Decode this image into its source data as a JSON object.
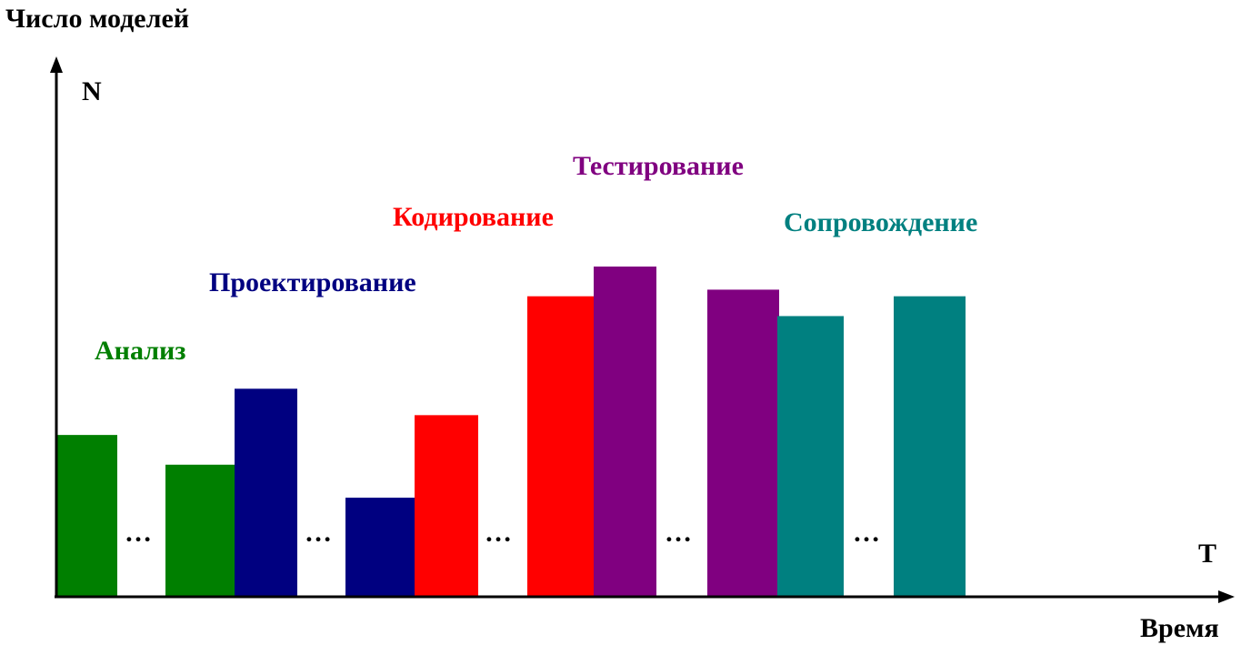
{
  "chart_data": {
    "type": "bar",
    "title": "Число моделей",
    "xlabel": "Время",
    "y_axis_symbol": "N",
    "x_axis_symbol": "T",
    "ylim": [
      0,
      100
    ],
    "grid": false,
    "colors": {
      "analysis": "#007f00",
      "design": "#000080",
      "coding": "#ff0000",
      "testing": "#800080",
      "maintenance": "#008080"
    },
    "series": [
      {
        "name": "Анализ",
        "values": [
          49,
          40
        ]
      },
      {
        "name": "Проектирование",
        "values": [
          63,
          30
        ]
      },
      {
        "name": "Кодирование",
        "values": [
          55,
          91
        ]
      },
      {
        "name": "Тестирование",
        "values": [
          100,
          93
        ]
      },
      {
        "name": "Сопровождение",
        "values": [
          85,
          91
        ]
      }
    ],
    "ellipsis": "…"
  }
}
